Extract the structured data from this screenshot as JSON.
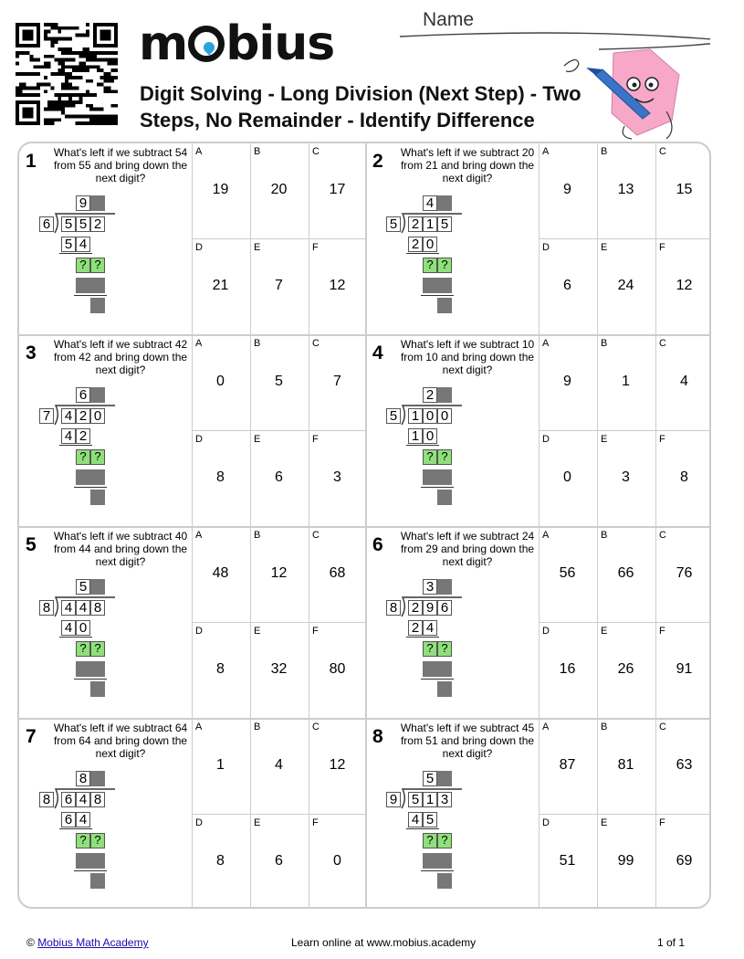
{
  "header": {
    "name_label": "Name",
    "logo_text": "mobius",
    "title": "Digit Solving - Long Division (Next Step) - Two Steps, No Remainder - Identify Difference"
  },
  "problems": [
    {
      "number": "1",
      "question": "What's left if we subtract 54 from 55 and bring down the next digit?",
      "divisor": "6",
      "dividend": [
        "5",
        "5",
        "2"
      ],
      "quotient": "9",
      "product": [
        "5",
        "4"
      ],
      "product_offset": 0,
      "answers": [
        {
          "letter": "A",
          "value": "19"
        },
        {
          "letter": "B",
          "value": "20"
        },
        {
          "letter": "C",
          "value": "17"
        },
        {
          "letter": "D",
          "value": "21"
        },
        {
          "letter": "E",
          "value": "7"
        },
        {
          "letter": "F",
          "value": "12"
        }
      ]
    },
    {
      "number": "2",
      "question": "What's left if we subtract 20 from 21 and bring down the next digit?",
      "divisor": "5",
      "dividend": [
        "2",
        "1",
        "5"
      ],
      "quotient": "4",
      "product": [
        "2",
        "0"
      ],
      "product_offset": 0,
      "answers": [
        {
          "letter": "A",
          "value": "9"
        },
        {
          "letter": "B",
          "value": "13"
        },
        {
          "letter": "C",
          "value": "15"
        },
        {
          "letter": "D",
          "value": "6"
        },
        {
          "letter": "E",
          "value": "24"
        },
        {
          "letter": "F",
          "value": "12"
        }
      ]
    },
    {
      "number": "3",
      "question": "What's left if we subtract 42 from 42 and bring down the next digit?",
      "divisor": "7",
      "dividend": [
        "4",
        "2",
        "0"
      ],
      "quotient": "6",
      "product": [
        "4",
        "2"
      ],
      "product_offset": 0,
      "answers": [
        {
          "letter": "A",
          "value": "0"
        },
        {
          "letter": "B",
          "value": "5"
        },
        {
          "letter": "C",
          "value": "7"
        },
        {
          "letter": "D",
          "value": "8"
        },
        {
          "letter": "E",
          "value": "6"
        },
        {
          "letter": "F",
          "value": "3"
        }
      ]
    },
    {
      "number": "4",
      "question": "What's left if we subtract 10 from 10 and bring down the next digit?",
      "divisor": "5",
      "dividend": [
        "1",
        "0",
        "0"
      ],
      "quotient": "2",
      "product": [
        "1",
        "0"
      ],
      "product_offset": 0,
      "answers": [
        {
          "letter": "A",
          "value": "9"
        },
        {
          "letter": "B",
          "value": "1"
        },
        {
          "letter": "C",
          "value": "4"
        },
        {
          "letter": "D",
          "value": "0"
        },
        {
          "letter": "E",
          "value": "3"
        },
        {
          "letter": "F",
          "value": "8"
        }
      ]
    },
    {
      "number": "5",
      "question": "What's left if we subtract 40 from 44 and bring down the next digit?",
      "divisor": "8",
      "dividend": [
        "4",
        "4",
        "8"
      ],
      "quotient": "5",
      "product": [
        "4",
        "0"
      ],
      "product_offset": 0,
      "answers": [
        {
          "letter": "A",
          "value": "48"
        },
        {
          "letter": "B",
          "value": "12"
        },
        {
          "letter": "C",
          "value": "68"
        },
        {
          "letter": "D",
          "value": "8"
        },
        {
          "letter": "E",
          "value": "32"
        },
        {
          "letter": "F",
          "value": "80"
        }
      ]
    },
    {
      "number": "6",
      "question": "What's left if we subtract 24 from 29 and bring down the next digit?",
      "divisor": "8",
      "dividend": [
        "2",
        "9",
        "6"
      ],
      "quotient": "3",
      "product": [
        "2",
        "4"
      ],
      "product_offset": 0,
      "answers": [
        {
          "letter": "A",
          "value": "56"
        },
        {
          "letter": "B",
          "value": "66"
        },
        {
          "letter": "C",
          "value": "76"
        },
        {
          "letter": "D",
          "value": "16"
        },
        {
          "letter": "E",
          "value": "26"
        },
        {
          "letter": "F",
          "value": "91"
        }
      ]
    },
    {
      "number": "7",
      "question": "What's left if we subtract 64 from 64 and bring down the next digit?",
      "divisor": "8",
      "dividend": [
        "6",
        "4",
        "8"
      ],
      "quotient": "8",
      "product": [
        "6",
        "4"
      ],
      "product_offset": 0,
      "answers": [
        {
          "letter": "A",
          "value": "1"
        },
        {
          "letter": "B",
          "value": "4"
        },
        {
          "letter": "C",
          "value": "12"
        },
        {
          "letter": "D",
          "value": "8"
        },
        {
          "letter": "E",
          "value": "6"
        },
        {
          "letter": "F",
          "value": "0"
        }
      ]
    },
    {
      "number": "8",
      "question": "What's left if we subtract 45 from 51 and bring down the next digit?",
      "divisor": "9",
      "dividend": [
        "5",
        "1",
        "3"
      ],
      "quotient": "5",
      "product": [
        "4",
        "5"
      ],
      "product_offset": 0,
      "answers": [
        {
          "letter": "A",
          "value": "87"
        },
        {
          "letter": "B",
          "value": "81"
        },
        {
          "letter": "C",
          "value": "63"
        },
        {
          "letter": "D",
          "value": "51"
        },
        {
          "letter": "E",
          "value": "99"
        },
        {
          "letter": "F",
          "value": "69"
        }
      ]
    }
  ],
  "placeholder_digit": "?",
  "footer": {
    "copyright_symbol": "©",
    "copyright_link": "Mobius Math Academy",
    "center_text": "Learn online at www.mobius.academy",
    "page": "1 of 1"
  },
  "colors": {
    "hint_green": "#8fe07a",
    "blank_gray": "#777777",
    "logo_drop": "#29a3dc",
    "mascot_pink": "#f7a8c8",
    "crayon_blue": "#3b73c6"
  }
}
